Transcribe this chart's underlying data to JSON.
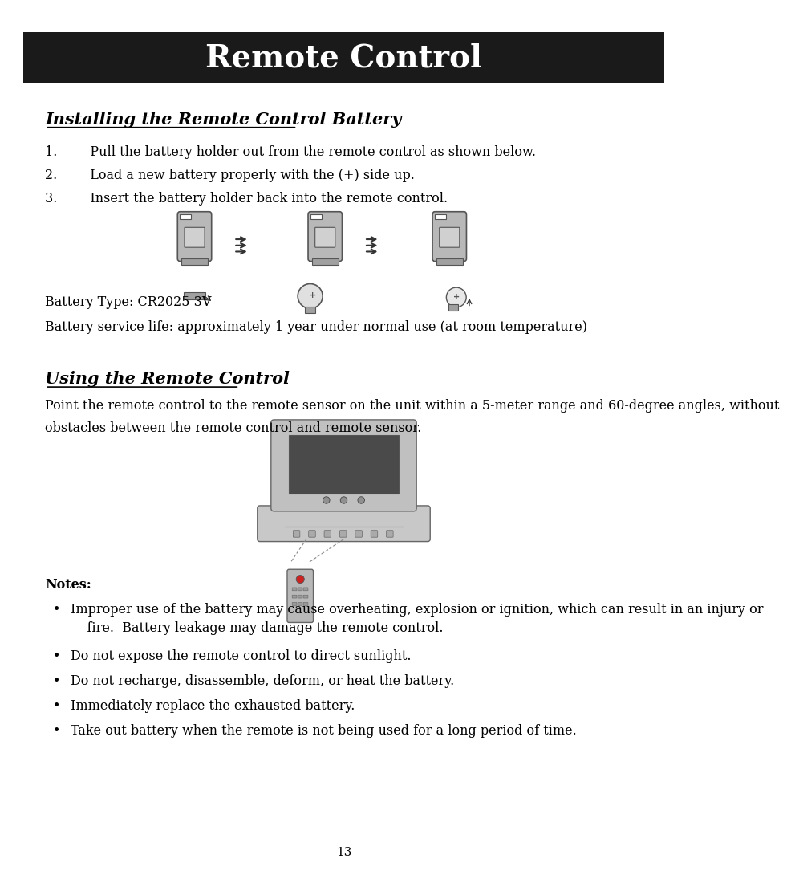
{
  "title": "Remote Control",
  "title_bg": "#1a1a1a",
  "title_color": "#ffffff",
  "title_fontsize": 28,
  "page_bg": "#ffffff",
  "section1_title": "Installing the Remote Control Battery",
  "section1_title_fontsize": 15,
  "steps": [
    "1.        Pull the battery holder out from the remote control as shown below.",
    "2.        Load a new battery properly with the (+) side up.",
    "3.        Insert the battery holder back into the remote control."
  ],
  "battery_info": [
    "Battery Type: CR2025 3V",
    "Battery service life: approximately 1 year under normal use (at room temperature)"
  ],
  "section2_title": "Using the Remote Control",
  "section2_title_fontsize": 15,
  "section2_body_line1": "Point the remote control to the remote sensor on the unit within a 5-meter range and 60-degree angles, without",
  "section2_body_line2": "obstacles between the remote control and remote sensor.",
  "notes_bold": "Notes:",
  "notes": [
    "Improper use of the battery may cause overheating, explosion or ignition, which can result in an injury or\n    fire.  Battery leakage may damage the remote control.",
    "Do not expose the remote control to direct sunlight.",
    "Do not recharge, disassemble, deform, or heat the battery.",
    "Immediately replace the exhausted battery.",
    "Take out battery when the remote is not being used for a long period of time."
  ],
  "page_number": "13",
  "body_fontsize": 11.5,
  "notes_fontsize": 11.5
}
